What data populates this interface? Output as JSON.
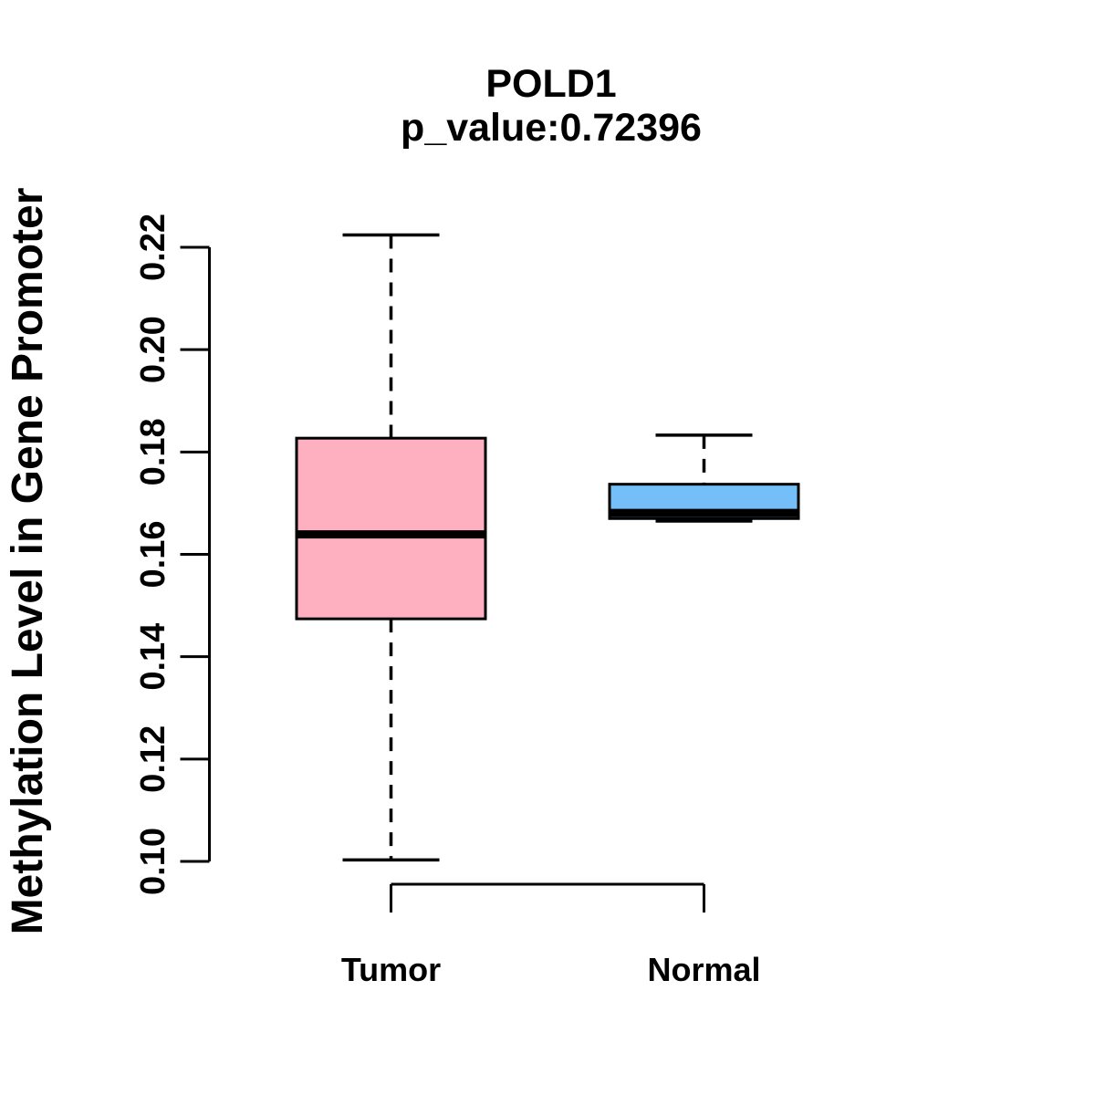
{
  "chart_data": {
    "type": "boxplot",
    "title": "POLD1",
    "subtitle": "p_value:0.72396",
    "p_value": 0.72396,
    "ylabel": "Methylation Level in Gene Promoter",
    "xlabel": "",
    "ylim": [
      0.1,
      0.22
    ],
    "yticks": [
      0.22,
      0.2,
      0.18,
      0.16,
      0.14,
      0.12,
      0.1
    ],
    "ytick_labels": [
      "0.22",
      "0.20",
      "0.18",
      "0.16",
      "0.14",
      "0.12",
      "0.10"
    ],
    "grid": false,
    "legend": null,
    "groups": [
      {
        "label": "Tumor",
        "fill": "#FFB0C0",
        "whisker_low": 0.1003,
        "q1": 0.1474,
        "median": 0.1639,
        "q3": 0.1827,
        "whisker_high": 0.2224
      },
      {
        "label": "Normal",
        "fill": "#74BFF7",
        "whisker_low": 0.1665,
        "q1": 0.167,
        "median": 0.1681,
        "q3": 0.1737,
        "whisker_high": 0.1833
      }
    ],
    "colors": {
      "stroke": "#000000",
      "background": "#FFFFFF",
      "tumor_fill": "#FFB0C0",
      "normal_fill": "#74BFF7"
    }
  }
}
